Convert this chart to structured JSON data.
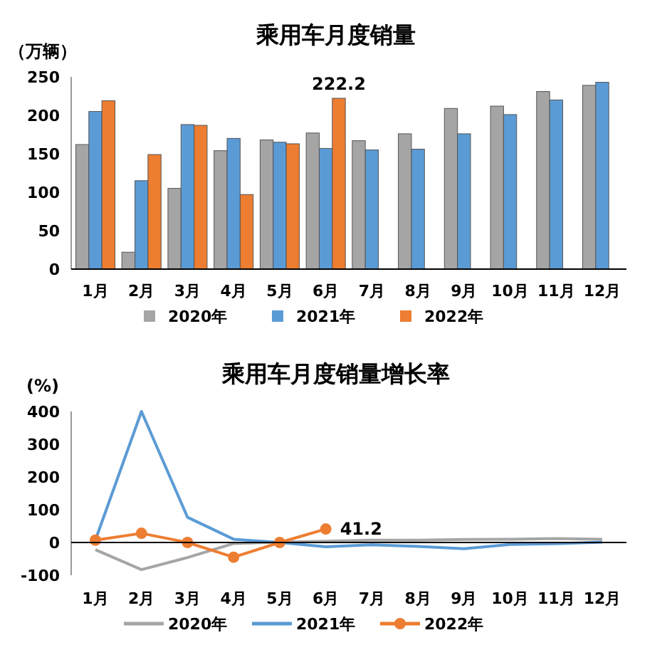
{
  "chart_data": [
    {
      "type": "bar",
      "title": "乘用车月度销量",
      "ylabel": "（万辆）",
      "categories": [
        "1月",
        "2月",
        "3月",
        "4月",
        "5月",
        "6月",
        "7月",
        "8月",
        "9月",
        "10月",
        "11月",
        "12月"
      ],
      "series": [
        {
          "name": "2020年",
          "color": "#a5a5a5",
          "values": [
            162,
            22,
            105,
            154,
            168,
            177,
            167,
            176,
            209,
            212,
            231,
            239
          ]
        },
        {
          "name": "2021年",
          "color": "#5b9bd5",
          "values": [
            205,
            115,
            188,
            170,
            165,
            157,
            155,
            156,
            176,
            201,
            220,
            243
          ]
        },
        {
          "name": "2022年",
          "color": "#ed7d31",
          "values": [
            219,
            149,
            187,
            97,
            163,
            222.2,
            null,
            null,
            null,
            null,
            null,
            null
          ],
          "value_labels": [
            null,
            null,
            null,
            null,
            null,
            "222.2",
            null,
            null,
            null,
            null,
            null,
            null
          ]
        }
      ],
      "ylim": [
        0,
        250
      ],
      "yticks": [
        0,
        50,
        100,
        150,
        200,
        250
      ],
      "legend": "bottom"
    },
    {
      "type": "line",
      "title": "乘用车月度销量增长率",
      "ylabel": "(%)",
      "categories": [
        "1月",
        "2月",
        "3月",
        "4月",
        "5月",
        "6月",
        "7月",
        "8月",
        "9月",
        "10月",
        "11月",
        "12月"
      ],
      "series": [
        {
          "name": "2020年",
          "color": "#a5a5a5",
          "marker": "none",
          "values": [
            -22,
            -83,
            -46,
            -3,
            1,
            4,
            7,
            7,
            9,
            10,
            12,
            10
          ]
        },
        {
          "name": "2021年",
          "color": "#5b9bd5",
          "marker": "none",
          "values": [
            7,
            400,
            77,
            10,
            0,
            -13,
            -7,
            -12,
            -19,
            -6,
            -4,
            1
          ]
        },
        {
          "name": "2022年",
          "color": "#ed7d31",
          "marker": "circle",
          "values": [
            7,
            28,
            0,
            -45,
            0,
            41.2,
            null,
            null,
            null,
            null,
            null,
            null
          ],
          "value_labels": [
            null,
            null,
            null,
            null,
            null,
            "41.2",
            null,
            null,
            null,
            null,
            null,
            null
          ]
        }
      ],
      "ylim": [
        -100,
        400
      ],
      "yticks": [
        -100,
        0,
        100,
        200,
        300,
        400
      ],
      "legend": "bottom"
    }
  ]
}
